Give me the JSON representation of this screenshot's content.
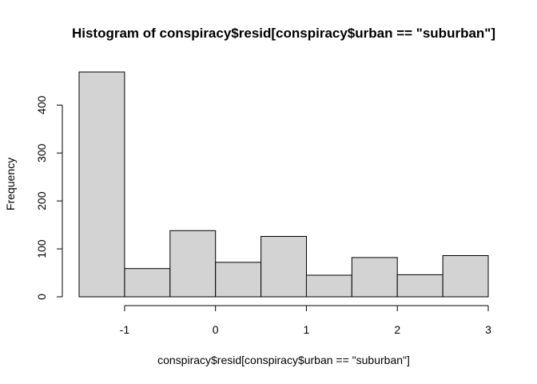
{
  "chart_data": {
    "type": "bar",
    "title": "Histogram of conspiracy$resid[conspiracy$urban == \"suburban\"]",
    "xlabel": "conspiracy$resid[conspiracy$urban == \"suburban\"]",
    "ylabel": "Frequency",
    "bins": [
      {
        "x0": -1.5,
        "x1": -1.0,
        "value": 469
      },
      {
        "x0": -1.0,
        "x1": -0.5,
        "value": 59
      },
      {
        "x0": -0.5,
        "x1": 0.0,
        "value": 138
      },
      {
        "x0": 0.0,
        "x1": 0.5,
        "value": 72
      },
      {
        "x0": 0.5,
        "x1": 1.0,
        "value": 126
      },
      {
        "x0": 1.0,
        "x1": 1.5,
        "value": 45
      },
      {
        "x0": 1.5,
        "x1": 2.0,
        "value": 82
      },
      {
        "x0": 2.0,
        "x1": 2.5,
        "value": 46
      },
      {
        "x0": 2.5,
        "x1": 3.0,
        "value": 86
      }
    ],
    "xlim": [
      -1.5,
      3.0
    ],
    "ylim": [
      0,
      469
    ],
    "xticks": [
      -1,
      0,
      1,
      2,
      3
    ],
    "yticks": [
      0,
      100,
      200,
      300,
      400
    ],
    "grid": false,
    "legend": "none"
  }
}
